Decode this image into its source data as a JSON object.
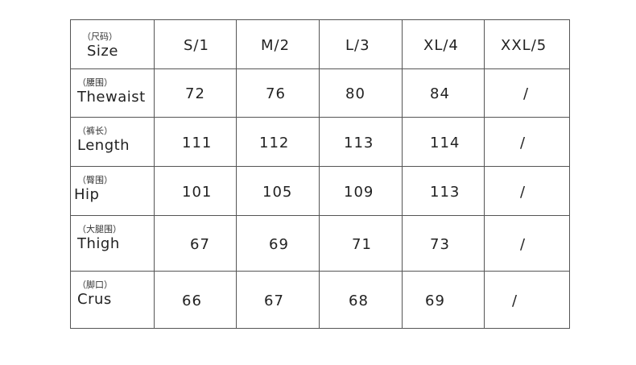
{
  "header": {
    "zh": "（尺码）",
    "en": "Size",
    "sizes": [
      "S/1",
      "M/2",
      "L/3",
      "XL/4",
      "XXL/5"
    ]
  },
  "rows": [
    {
      "zh": "（腰围）",
      "en": "Thewaist",
      "values": [
        "72",
        "76",
        "80",
        "84",
        "/"
      ]
    },
    {
      "zh": "（裤长）",
      "en": "Length",
      "values": [
        "111",
        "112",
        "113",
        "114",
        "/"
      ]
    },
    {
      "zh": "（臀围）",
      "en": "Hip",
      "values": [
        "101",
        "105",
        "109",
        "113",
        "/"
      ]
    },
    {
      "zh": "（大腿围）",
      "en": "Thigh",
      "values": [
        "67",
        "69",
        "71",
        "73",
        "/"
      ]
    },
    {
      "zh": "（脚口）",
      "en": "Crus",
      "values": [
        "66",
        "67",
        "68",
        "69",
        "/"
      ]
    }
  ]
}
